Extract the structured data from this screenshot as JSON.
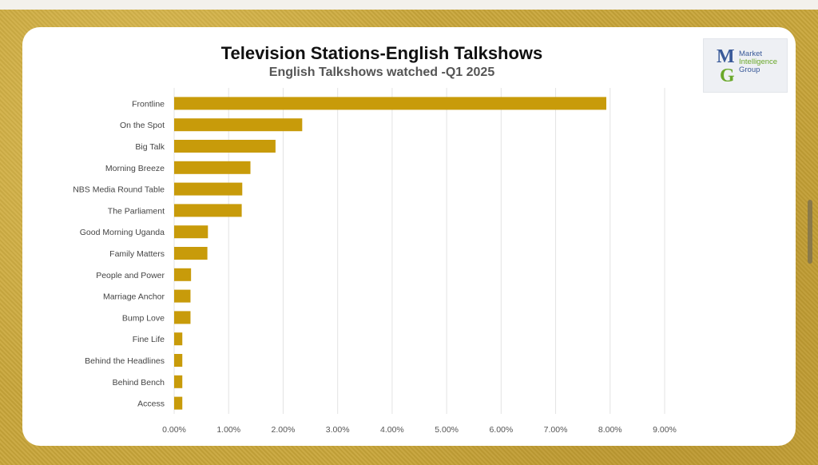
{
  "chart_data": {
    "type": "bar",
    "orientation": "horizontal",
    "title": "Television Stations-English Talkshows",
    "subtitle": "English Talkshows watched -Q1 2025",
    "categories": [
      "Frontline",
      "On the Spot",
      "Big Talk",
      "Morning Breeze",
      "NBS Media Round Table",
      "The Parliament",
      "Good Morning Uganda",
      "Family Matters",
      "People and Power",
      "Marriage Anchor",
      "Bump Love",
      "Fine Life",
      "Behind the Headlines",
      "Behind Bench",
      "Access"
    ],
    "values": [
      7.93,
      2.35,
      1.86,
      1.4,
      1.25,
      1.24,
      0.62,
      0.61,
      0.31,
      0.3,
      0.3,
      0.15,
      0.15,
      0.15,
      0.15
    ],
    "xlim": [
      0,
      9
    ],
    "xticks": [
      "0.00%",
      "1.00%",
      "2.00%",
      "3.00%",
      "4.00%",
      "5.00%",
      "6.00%",
      "7.00%",
      "8.00%",
      "9.00%"
    ],
    "grid": "vertical",
    "bar_color": "#c89b0a",
    "legend": "none"
  },
  "logo": {
    "letters": "MG",
    "line1": "Market",
    "line2": "Intelligence",
    "line3": "Group",
    "color_blue": "#3a5a99",
    "color_green": "#6aa82a"
  },
  "colors": {
    "frame": "#c9a63a",
    "card": "#ffffff",
    "grid": "#e3e3e3"
  }
}
